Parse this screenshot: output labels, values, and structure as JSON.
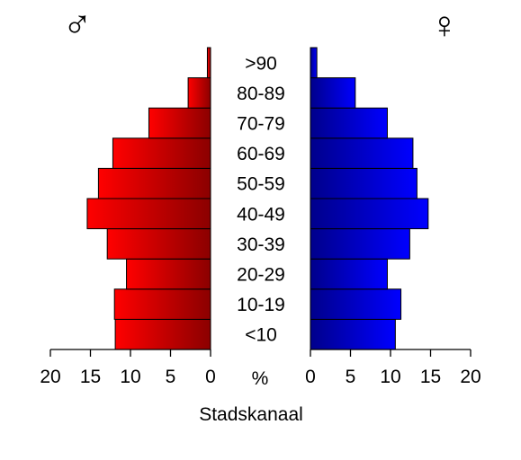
{
  "chart_data": {
    "type": "bar",
    "orientation": "horizontal",
    "layout": "population-pyramid",
    "caption": "Stadskanaal",
    "unit_label": "%",
    "categories": [
      "<10",
      "10-19",
      "20-29",
      "30-39",
      "40-49",
      "50-59",
      "60-69",
      "70-79",
      "80-89",
      ">90"
    ],
    "series": [
      {
        "symbol": "♂",
        "side": "left",
        "color": "#ff0000",
        "color_dark": "#8b0000",
        "values": [
          11.9,
          12.0,
          10.5,
          12.9,
          15.4,
          14.0,
          12.2,
          7.7,
          2.8,
          0.4
        ]
      },
      {
        "symbol": "♀",
        "side": "right",
        "color": "#0000ff",
        "color_dark": "#00008b",
        "values": [
          10.6,
          11.3,
          9.6,
          12.4,
          14.7,
          13.3,
          12.8,
          9.6,
          5.6,
          0.8
        ]
      }
    ],
    "xlim": [
      0,
      20
    ],
    "ticks": [
      0,
      5,
      10,
      15,
      20
    ],
    "grid": false,
    "legend": "none"
  }
}
